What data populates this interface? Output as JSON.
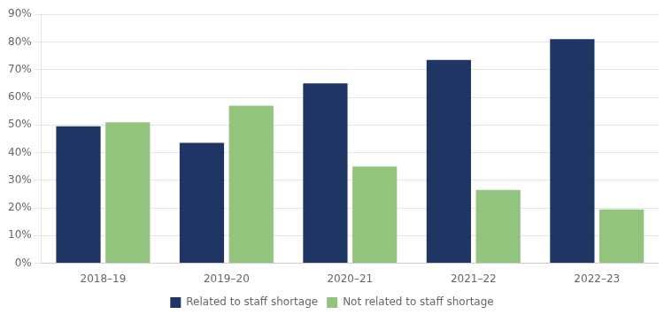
{
  "chart_data": {
    "type": "bar",
    "categories": [
      "2018–19",
      "2019–20",
      "2020–21",
      "2021–22",
      "2022–23"
    ],
    "series": [
      {
        "name": "Related to staff shortage",
        "color": "#1f3564",
        "values": [
          0.495,
          0.435,
          0.65,
          0.735,
          0.81
        ]
      },
      {
        "name": "Not related to staff shortage",
        "color": "#93c47d",
        "values": [
          0.51,
          0.57,
          0.35,
          0.265,
          0.195
        ]
      }
    ],
    "ylim": [
      0,
      0.9
    ],
    "yticks": [
      {
        "value": 0.0,
        "label": "0%"
      },
      {
        "value": 0.1,
        "label": "10%"
      },
      {
        "value": 0.2,
        "label": "20%"
      },
      {
        "value": 0.3,
        "label": "30%"
      },
      {
        "value": 0.4,
        "label": "40%"
      },
      {
        "value": 0.5,
        "label": "50%"
      },
      {
        "value": 0.6,
        "label": "60%"
      },
      {
        "value": 0.7,
        "label": "70%"
      },
      {
        "value": 0.8,
        "label": "80%"
      },
      {
        "value": 0.9,
        "label": "90%"
      }
    ],
    "grid": true,
    "legend": "bottom"
  }
}
